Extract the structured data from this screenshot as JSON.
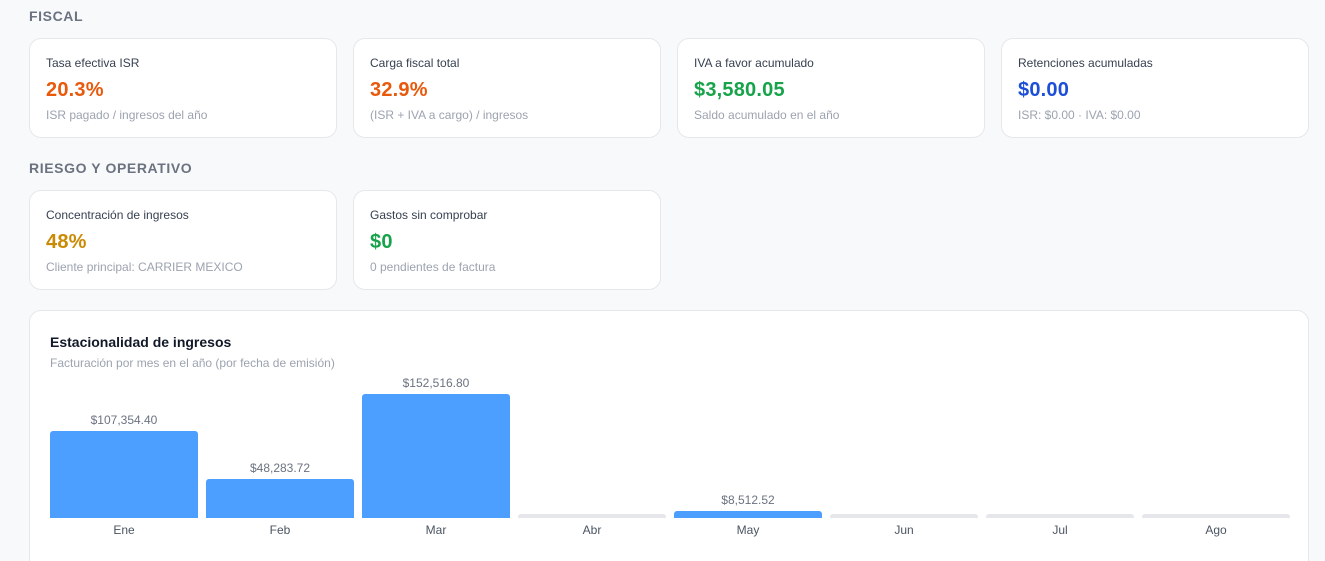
{
  "fiscal": {
    "title": "FISCAL",
    "cards": [
      {
        "label": "Tasa efectiva ISR",
        "value": "20.3%",
        "sub": "ISR pagado / ingresos del año",
        "color": "#e8590c"
      },
      {
        "label": "Carga fiscal total",
        "value": "32.9%",
        "sub": "(ISR + IVA a cargo) / ingresos",
        "color": "#e8590c"
      },
      {
        "label": "IVA a favor acumulado",
        "value": "$3,580.05",
        "sub": "Saldo acumulado en el año",
        "color": "#16a34a"
      },
      {
        "label": "Retenciones acumuladas",
        "value": "$0.00",
        "sub": "ISR: $0.00 · IVA: $0.00",
        "color": "#1d4ed8"
      }
    ]
  },
  "riesgo": {
    "title": "RIESGO Y OPERATIVO",
    "cards": [
      {
        "label": "Concentración de ingresos",
        "value": "48%",
        "sub": "Cliente principal: CARRIER MEXICO",
        "color": "#ca8a04"
      },
      {
        "label": "Gastos sin comprobar",
        "value": "$0",
        "sub": "0 pendientes de factura",
        "color": "#16a34a"
      }
    ]
  },
  "chart": {
    "title": "Estacionalidad de ingresos",
    "subtitle": "Facturación por mes en el año (por fecha de emisión)"
  },
  "chart_data": {
    "type": "bar",
    "categories": [
      "Ene",
      "Feb",
      "Mar",
      "Abr",
      "May",
      "Jun",
      "Jul",
      "Ago"
    ],
    "values": [
      107354.4,
      48283.72,
      152516.8,
      0,
      8512.52,
      0,
      0,
      0
    ],
    "value_labels": [
      "$107,354.40",
      "$48,283.72",
      "$152,516.80",
      "",
      "$8,512.52",
      "",
      "",
      ""
    ],
    "bar_color": "#4c9ffe",
    "empty_color": "#e5e7eb"
  }
}
